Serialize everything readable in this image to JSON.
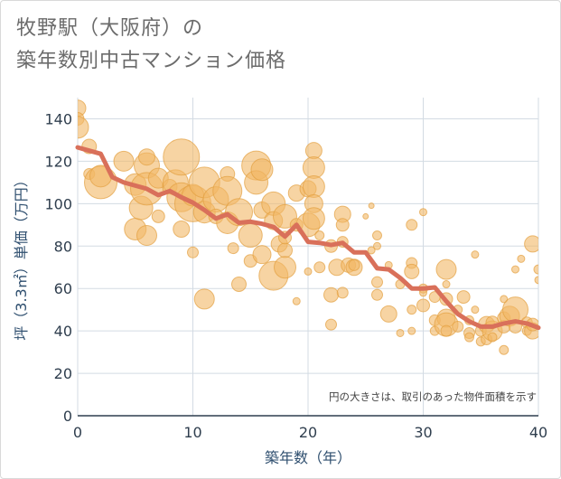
{
  "title_line1": "牧野駅（大阪府）の",
  "title_line2": "築年数別中古マンション価格",
  "chart_data": {
    "type": "scatter",
    "xlabel": "築年数（年）",
    "ylabel": "坪（3.3㎡）単価（万円）",
    "xlim": [
      0,
      40
    ],
    "ylim": [
      0,
      150
    ],
    "xticks": [
      0,
      10,
      20,
      30,
      40
    ],
    "yticks": [
      0,
      20,
      40,
      60,
      80,
      100,
      120,
      140
    ],
    "grid": true,
    "note": "円の大きさは、取引のあった物件面積を示す",
    "colors": {
      "bubble_fill": "#f2b765",
      "bubble_stroke": "#e3a040",
      "trend": "#d9705a",
      "grid": "#d3dbe3"
    },
    "points": [
      {
        "x": 0,
        "y": 145,
        "s": 9
      },
      {
        "x": 0,
        "y": 140,
        "s": 7
      },
      {
        "x": 0,
        "y": 136,
        "s": 12
      },
      {
        "x": 1,
        "y": 127,
        "s": 8
      },
      {
        "x": 1,
        "y": 114,
        "s": 6
      },
      {
        "x": 2,
        "y": 110,
        "s": 18
      },
      {
        "x": 2,
        "y": 113,
        "s": 12
      },
      {
        "x": 4,
        "y": 120,
        "s": 11
      },
      {
        "x": 5,
        "y": 109,
        "s": 12
      },
      {
        "x": 5,
        "y": 88,
        "s": 12
      },
      {
        "x": 5.5,
        "y": 98,
        "s": 13
      },
      {
        "x": 6,
        "y": 118,
        "s": 14
      },
      {
        "x": 6,
        "y": 122,
        "s": 9
      },
      {
        "x": 6,
        "y": 107,
        "s": 18
      },
      {
        "x": 6,
        "y": 85,
        "s": 11
      },
      {
        "x": 7,
        "y": 112,
        "s": 11
      },
      {
        "x": 7,
        "y": 94,
        "s": 7
      },
      {
        "x": 8,
        "y": 108,
        "s": 8
      },
      {
        "x": 8.5,
        "y": 110,
        "s": 14
      },
      {
        "x": 9,
        "y": 122,
        "s": 20
      },
      {
        "x": 9,
        "y": 103,
        "s": 16
      },
      {
        "x": 9,
        "y": 88,
        "s": 9
      },
      {
        "x": 10,
        "y": 100,
        "s": 20
      },
      {
        "x": 10,
        "y": 104,
        "s": 12
      },
      {
        "x": 10,
        "y": 77,
        "s": 6
      },
      {
        "x": 11,
        "y": 110,
        "s": 17
      },
      {
        "x": 11,
        "y": 96,
        "s": 12
      },
      {
        "x": 11,
        "y": 55,
        "s": 11
      },
      {
        "x": 12,
        "y": 102,
        "s": 14
      },
      {
        "x": 12,
        "y": 94,
        "s": 8
      },
      {
        "x": 13,
        "y": 114,
        "s": 8
      },
      {
        "x": 13,
        "y": 106,
        "s": 16
      },
      {
        "x": 13,
        "y": 91,
        "s": 12
      },
      {
        "x": 13.5,
        "y": 79,
        "s": 6
      },
      {
        "x": 14,
        "y": 96,
        "s": 15
      },
      {
        "x": 14,
        "y": 62,
        "s": 8
      },
      {
        "x": 15,
        "y": 85,
        "s": 13
      },
      {
        "x": 15,
        "y": 73,
        "s": 7
      },
      {
        "x": 15.5,
        "y": 118,
        "s": 16
      },
      {
        "x": 15.5,
        "y": 110,
        "s": 13
      },
      {
        "x": 16,
        "y": 116,
        "s": 12
      },
      {
        "x": 16,
        "y": 97,
        "s": 9
      },
      {
        "x": 16,
        "y": 76,
        "s": 10
      },
      {
        "x": 17,
        "y": 100,
        "s": 13
      },
      {
        "x": 17,
        "y": 92,
        "s": 10
      },
      {
        "x": 17,
        "y": 66,
        "s": 16
      },
      {
        "x": 17.5,
        "y": 81,
        "s": 9
      },
      {
        "x": 18,
        "y": 94,
        "s": 13
      },
      {
        "x": 18,
        "y": 78,
        "s": 8
      },
      {
        "x": 18,
        "y": 70,
        "s": 12
      },
      {
        "x": 18,
        "y": 84,
        "s": 7
      },
      {
        "x": 19,
        "y": 105,
        "s": 9
      },
      {
        "x": 19,
        "y": 90,
        "s": 7
      },
      {
        "x": 19,
        "y": 54,
        "s": 4
      },
      {
        "x": 20,
        "y": 107,
        "s": 9
      },
      {
        "x": 20,
        "y": 90,
        "s": 13
      },
      {
        "x": 20,
        "y": 68,
        "s": 4
      },
      {
        "x": 20.5,
        "y": 125,
        "s": 9
      },
      {
        "x": 20.5,
        "y": 117,
        "s": 12
      },
      {
        "x": 20.5,
        "y": 108,
        "s": 12
      },
      {
        "x": 20.5,
        "y": 100,
        "s": 10
      },
      {
        "x": 20.5,
        "y": 93,
        "s": 12
      },
      {
        "x": 21,
        "y": 70,
        "s": 6
      },
      {
        "x": 21,
        "y": 85,
        "s": 5
      },
      {
        "x": 22,
        "y": 80,
        "s": 7
      },
      {
        "x": 22,
        "y": 57,
        "s": 8
      },
      {
        "x": 22,
        "y": 43,
        "s": 6
      },
      {
        "x": 22.5,
        "y": 70,
        "s": 9
      },
      {
        "x": 23,
        "y": 95,
        "s": 9
      },
      {
        "x": 23,
        "y": 90,
        "s": 7
      },
      {
        "x": 23,
        "y": 82,
        "s": 6
      },
      {
        "x": 23,
        "y": 58,
        "s": 6
      },
      {
        "x": 23.5,
        "y": 71,
        "s": 8
      },
      {
        "x": 24,
        "y": 70,
        "s": 9
      },
      {
        "x": 24,
        "y": 71,
        "s": 6
      },
      {
        "x": 25,
        "y": 94,
        "s": 3
      },
      {
        "x": 25.5,
        "y": 78,
        "s": 4
      },
      {
        "x": 25.5,
        "y": 99,
        "s": 3
      },
      {
        "x": 26,
        "y": 85,
        "s": 5
      },
      {
        "x": 26,
        "y": 80,
        "s": 4
      },
      {
        "x": 26,
        "y": 63,
        "s": 6
      },
      {
        "x": 26,
        "y": 57,
        "s": 6
      },
      {
        "x": 27,
        "y": 48,
        "s": 9
      },
      {
        "x": 27,
        "y": 71,
        "s": 4
      },
      {
        "x": 28,
        "y": 39,
        "s": 4
      },
      {
        "x": 28,
        "y": 62,
        "s": 5
      },
      {
        "x": 29,
        "y": 90,
        "s": 6
      },
      {
        "x": 29,
        "y": 72,
        "s": 6
      },
      {
        "x": 29,
        "y": 68,
        "s": 8
      },
      {
        "x": 29,
        "y": 50,
        "s": 5
      },
      {
        "x": 29,
        "y": 40,
        "s": 4
      },
      {
        "x": 30,
        "y": 96,
        "s": 4
      },
      {
        "x": 30,
        "y": 60,
        "s": 5
      },
      {
        "x": 30,
        "y": 52,
        "s": 7
      },
      {
        "x": 30,
        "y": 58,
        "s": 4
      },
      {
        "x": 31,
        "y": 56,
        "s": 6
      },
      {
        "x": 31,
        "y": 45,
        "s": 6
      },
      {
        "x": 31,
        "y": 40,
        "s": 5
      },
      {
        "x": 32,
        "y": 69,
        "s": 11
      },
      {
        "x": 32,
        "y": 62,
        "s": 4
      },
      {
        "x": 32,
        "y": 55,
        "s": 7
      },
      {
        "x": 32,
        "y": 46,
        "s": 10
      },
      {
        "x": 32,
        "y": 43,
        "s": 13
      },
      {
        "x": 32,
        "y": 40,
        "s": 6
      },
      {
        "x": 33,
        "y": 42,
        "s": 6
      },
      {
        "x": 33,
        "y": 50,
        "s": 5
      },
      {
        "x": 33.5,
        "y": 56,
        "s": 7
      },
      {
        "x": 34,
        "y": 39,
        "s": 6
      },
      {
        "x": 34,
        "y": 45,
        "s": 5
      },
      {
        "x": 34,
        "y": 37,
        "s": 5
      },
      {
        "x": 34.5,
        "y": 76,
        "s": 4
      },
      {
        "x": 34.5,
        "y": 50,
        "s": 4
      },
      {
        "x": 35,
        "y": 35,
        "s": 5
      },
      {
        "x": 35,
        "y": 40,
        "s": 6
      },
      {
        "x": 35.5,
        "y": 43,
        "s": 9
      },
      {
        "x": 35.5,
        "y": 36,
        "s": 6
      },
      {
        "x": 36,
        "y": 40,
        "s": 11
      },
      {
        "x": 36,
        "y": 44,
        "s": 7
      },
      {
        "x": 36,
        "y": 37,
        "s": 5
      },
      {
        "x": 37,
        "y": 42,
        "s": 7
      },
      {
        "x": 37,
        "y": 46,
        "s": 7
      },
      {
        "x": 37,
        "y": 55,
        "s": 4
      },
      {
        "x": 37,
        "y": 31,
        "s": 5
      },
      {
        "x": 37.5,
        "y": 47,
        "s": 11
      },
      {
        "x": 38,
        "y": 50,
        "s": 14
      },
      {
        "x": 38,
        "y": 42,
        "s": 7
      },
      {
        "x": 38,
        "y": 69,
        "s": 4
      },
      {
        "x": 38.5,
        "y": 74,
        "s": 4
      },
      {
        "x": 39,
        "y": 44,
        "s": 6
      },
      {
        "x": 39,
        "y": 40,
        "s": 5
      },
      {
        "x": 39.5,
        "y": 81,
        "s": 9
      },
      {
        "x": 39.5,
        "y": 40,
        "s": 9
      },
      {
        "x": 39.5,
        "y": 43,
        "s": 7
      },
      {
        "x": 40,
        "y": 69,
        "s": 5
      },
      {
        "x": 40,
        "y": 64,
        "s": 4
      }
    ],
    "trend": [
      [
        0,
        126.5
      ],
      [
        1,
        125
      ],
      [
        2,
        123.5
      ],
      [
        3,
        112.5
      ],
      [
        4,
        110
      ],
      [
        5,
        108.5
      ],
      [
        6,
        107
      ],
      [
        7,
        104
      ],
      [
        8,
        106
      ],
      [
        9,
        103
      ],
      [
        10,
        100.5
      ],
      [
        11,
        97
      ],
      [
        12,
        93
      ],
      [
        13,
        95
      ],
      [
        14,
        91
      ],
      [
        15,
        91.5
      ],
      [
        16,
        90.5
      ],
      [
        17,
        89
      ],
      [
        18,
        84.5
      ],
      [
        19,
        90
      ],
      [
        20,
        82
      ],
      [
        21,
        81.5
      ],
      [
        22,
        80.5
      ],
      [
        23,
        81.5
      ],
      [
        24,
        77
      ],
      [
        25,
        77
      ],
      [
        26,
        69.5
      ],
      [
        27,
        69
      ],
      [
        28,
        65
      ],
      [
        29,
        60
      ],
      [
        30,
        60
      ],
      [
        31,
        60.5
      ],
      [
        32,
        54
      ],
      [
        33,
        48
      ],
      [
        34,
        44.5
      ],
      [
        35,
        42
      ],
      [
        36,
        42
      ],
      [
        37,
        43.5
      ],
      [
        38,
        44.5
      ],
      [
        39,
        43.5
      ],
      [
        40,
        41.5
      ]
    ]
  }
}
